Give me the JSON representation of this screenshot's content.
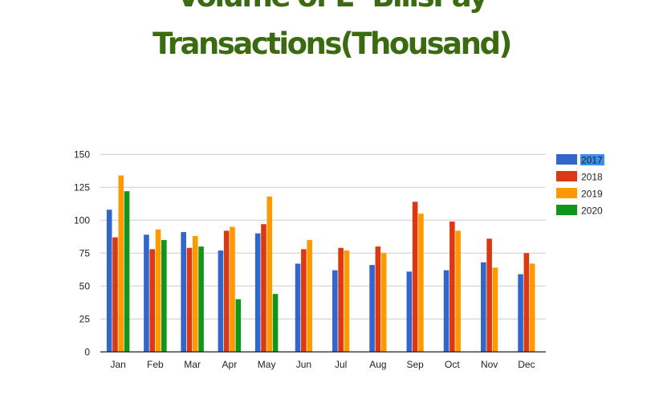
{
  "chart_data": {
    "type": "bar",
    "title": [
      "Volume of E- BillsPay",
      "Transactions(Thousand)"
    ],
    "xlabel": "",
    "ylabel": "",
    "ylim": [
      0,
      150
    ],
    "yticks": [
      "0",
      "25",
      "50",
      "75",
      "100",
      "125",
      "150"
    ],
    "ytick_values": [
      0,
      25,
      50,
      75,
      100,
      125,
      150
    ],
    "grid": true,
    "legend_position": "right",
    "categories": [
      "Jan",
      "Feb",
      "Mar",
      "Apr",
      "May",
      "Jun",
      "Jul",
      "Aug",
      "Sep",
      "Oct",
      "Nov",
      "Dec"
    ],
    "series": [
      {
        "name": "2017",
        "color": "#3366cc",
        "values": [
          108,
          89,
          91,
          77,
          90,
          67,
          62,
          66,
          61,
          62,
          68,
          59
        ]
      },
      {
        "name": "2018",
        "color": "#dc3912",
        "values": [
          87,
          78,
          79,
          92,
          97,
          78,
          79,
          80,
          114,
          99,
          86,
          75
        ]
      },
      {
        "name": "2019",
        "color": "#ff9900",
        "values": [
          134,
          93,
          88,
          95,
          118,
          85,
          77,
          75,
          105,
          92,
          64,
          67
        ]
      },
      {
        "name": "2020",
        "color": "#109618",
        "values": [
          122,
          85,
          80,
          40,
          44,
          null,
          null,
          null,
          null,
          null,
          null,
          null
        ]
      }
    ],
    "legend_selected": "2017",
    "selection_color": "#3b8df0"
  }
}
